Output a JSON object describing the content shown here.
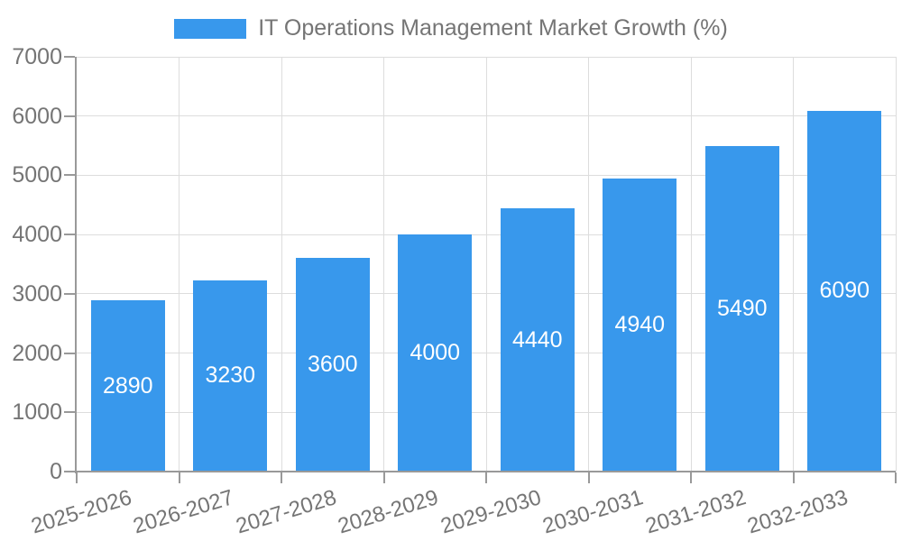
{
  "chart_data": {
    "type": "bar",
    "title": "IT Operations Management Market Growth (%)",
    "legend_position": "top",
    "categories": [
      "2025-2026",
      "2026-2027",
      "2027-2028",
      "2028-2029",
      "2029-2030",
      "2030-2031",
      "2031-2032",
      "2032-2033"
    ],
    "values": [
      2890,
      3230,
      3600,
      4000,
      4440,
      4940,
      5490,
      6090
    ],
    "xlabel": "",
    "ylabel": "",
    "ylim": [
      0,
      7000
    ],
    "yticks": [
      0,
      1000,
      2000,
      3000,
      4000,
      5000,
      6000,
      7000
    ],
    "grid": true,
    "xtick_rotation_deg": -17,
    "bar_color": "#3898EC",
    "value_label_color": "#FFFFFF"
  },
  "colors": {
    "bar": "#3898EC",
    "axis_text": "#757575",
    "grid_line": "#DDDDDD",
    "axis_line": "#999999",
    "background": "#FFFFFF"
  }
}
